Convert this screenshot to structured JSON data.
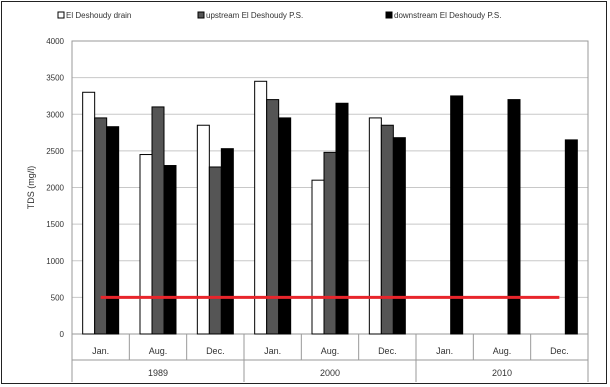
{
  "chart_data": {
    "type": "bar",
    "ylabel": "TDS (mg/l)",
    "ylim": [
      0,
      4000
    ],
    "ytick_step": 500,
    "grid": true,
    "legend_position": "top",
    "groups": [
      {
        "label": "1989",
        "categories": [
          "Jan.",
          "Aug.",
          "Dec."
        ]
      },
      {
        "label": "2000",
        "categories": [
          "Jan.",
          "Aug.",
          "Dec."
        ]
      },
      {
        "label": "2010",
        "categories": [
          "Jan.",
          "Aug.",
          "Dec."
        ]
      }
    ],
    "categories": [
      "Jan.",
      "Aug.",
      "Dec.",
      "Jan.",
      "Aug.",
      "Dec.",
      "Jan.",
      "Aug.",
      "Dec."
    ],
    "series": [
      {
        "name": "El Deshoudy drain",
        "color": "#ffffff",
        "values": [
          3300,
          2450,
          2850,
          3450,
          2100,
          2950,
          null,
          null,
          null
        ]
      },
      {
        "name": "upstream El Deshoudy P.S.",
        "color": "#555555",
        "values": [
          2950,
          3100,
          2280,
          3200,
          2480,
          2850,
          null,
          null,
          null
        ]
      },
      {
        "name": "downstream El Deshoudy P.S.",
        "color": "#000000",
        "values": [
          2830,
          2300,
          2530,
          2950,
          3150,
          2680,
          3250,
          3200,
          2650
        ]
      }
    ],
    "reference_line": {
      "value": 500,
      "color": "#e8252b"
    }
  }
}
